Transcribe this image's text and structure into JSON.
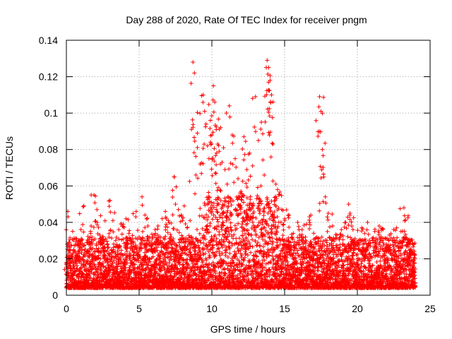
{
  "chart_data": {
    "type": "scatter",
    "title": "Day 288 of 2020, Rate Of TEC Index for receiver pngm",
    "xlabel": "GPS time / hours",
    "ylabel": "ROTI / TECUs",
    "xlim": [
      0,
      25
    ],
    "ylim": [
      0,
      0.14
    ],
    "xticks": [
      0,
      5,
      10,
      15,
      20,
      25
    ],
    "xtick_labels": [
      "0",
      "5",
      "10",
      "15",
      "20",
      "25"
    ],
    "yticks": [
      0,
      0.02,
      0.04,
      0.06,
      0.08,
      0.1,
      0.12,
      0.14
    ],
    "ytick_labels": [
      "0",
      "0.02",
      "0.04",
      "0.06",
      "0.08",
      "0.1",
      "0.12",
      "0.14"
    ],
    "grid": true,
    "marker": "+",
    "color": "#ff0000",
    "series": [
      {
        "name": "ROTI",
        "x": [
          0.0,
          0.1,
          0.2,
          0.3,
          0.5,
          0.7,
          0.9,
          1.0,
          1.2,
          1.5,
          1.7,
          1.9,
          2.1,
          2.3,
          2.5,
          2.7,
          3.0,
          3.2,
          3.4,
          3.6,
          3.9,
          4.1,
          4.3,
          4.5,
          4.8,
          5.0,
          5.2,
          5.4,
          5.6,
          5.9,
          6.1,
          6.3,
          6.6,
          6.8,
          7.0,
          7.2,
          7.4,
          7.5,
          7.7,
          7.9,
          8.1,
          8.3,
          8.5,
          8.7,
          8.8,
          8.9,
          9.0,
          9.2,
          9.4,
          9.5,
          9.6,
          9.7,
          9.8,
          9.9,
          10.0,
          10.1,
          10.2,
          10.3,
          10.4,
          10.5,
          10.6,
          10.7,
          10.8,
          10.9,
          11.0,
          11.2,
          11.4,
          11.6,
          11.8,
          12.0,
          12.2,
          12.4,
          12.6,
          12.8,
          13.0,
          13.2,
          13.4,
          13.6,
          13.8,
          13.9,
          14.0,
          14.1,
          14.2,
          14.4,
          14.6,
          14.8,
          15.0,
          15.3,
          15.6,
          15.9,
          16.2,
          16.5,
          16.8,
          17.1,
          17.4,
          17.5,
          17.6,
          17.8,
          18.0,
          18.3,
          18.6,
          18.9,
          19.2,
          19.4,
          19.5,
          19.7,
          20.0,
          20.3,
          20.5,
          20.7,
          21.2,
          21.5,
          21.7,
          22.0,
          22.2,
          22.5,
          22.7,
          23.0,
          23.2,
          23.4,
          23.5,
          23.7,
          23.9
        ],
        "y": [
          0.018,
          0.046,
          0.029,
          0.022,
          0.025,
          0.031,
          0.026,
          0.036,
          0.049,
          0.024,
          0.038,
          0.055,
          0.047,
          0.033,
          0.028,
          0.031,
          0.052,
          0.041,
          0.027,
          0.036,
          0.039,
          0.042,
          0.034,
          0.029,
          0.046,
          0.032,
          0.054,
          0.044,
          0.038,
          0.031,
          0.036,
          0.038,
          0.029,
          0.046,
          0.041,
          0.032,
          0.065,
          0.05,
          0.047,
          0.044,
          0.049,
          0.037,
          0.041,
          0.128,
          0.122,
          0.066,
          0.089,
          0.072,
          0.11,
          0.101,
          0.094,
          0.082,
          0.075,
          0.096,
          0.088,
          0.115,
          0.106,
          0.091,
          0.083,
          0.079,
          0.092,
          0.073,
          0.081,
          0.069,
          0.1,
          0.104,
          0.088,
          0.075,
          0.064,
          0.057,
          0.087,
          0.069,
          0.078,
          0.071,
          0.109,
          0.085,
          0.095,
          0.066,
          0.129,
          0.125,
          0.118,
          0.11,
          0.083,
          0.061,
          0.055,
          0.047,
          0.042,
          0.044,
          0.034,
          0.04,
          0.036,
          0.039,
          0.044,
          0.031,
          0.109,
          0.101,
          0.08,
          0.054,
          0.045,
          0.038,
          0.033,
          0.036,
          0.04,
          0.05,
          0.045,
          0.036,
          0.029,
          0.037,
          0.034,
          0.04,
          0.035,
          0.038,
          0.03,
          0.028,
          0.033,
          0.036,
          0.037,
          0.035,
          0.048,
          0.031,
          0.028,
          0.025,
          0.023
        ]
      }
    ]
  }
}
